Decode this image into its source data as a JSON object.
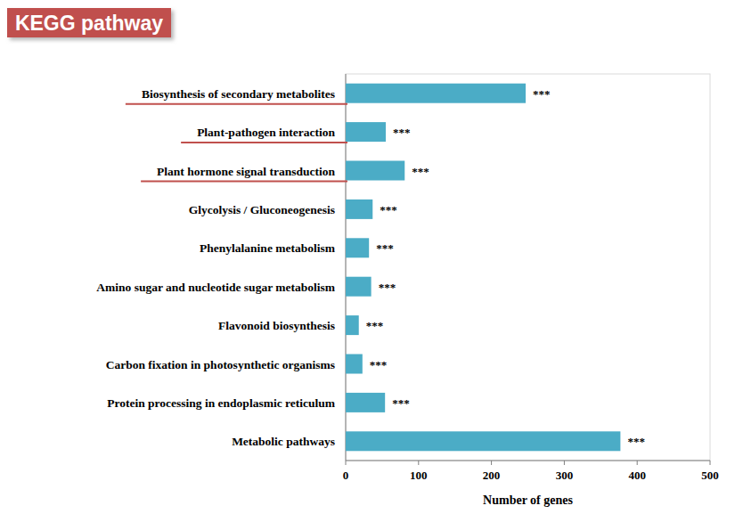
{
  "chart_data": {
    "type": "bar",
    "orientation": "horizontal",
    "title": "KEGG pathway",
    "x_label": "Number of genes",
    "categories": [
      "Biosynthesis of secondary metabolites",
      "Plant-pathogen interaction",
      "Plant hormone signal transduction",
      "Glycolysis / Gluconeogenesis",
      "Phenylalanine metabolism",
      "Amino sugar and nucleotide sugar metabolism",
      "Flavonoid biosynthesis",
      "Carbon fixation in photosynthetic organisms",
      "Protein processing in endoplasmic reticulum",
      "Metabolic pathways"
    ],
    "values": [
      247,
      55,
      81,
      37,
      32,
      35,
      18,
      23,
      54,
      377
    ],
    "annotations": [
      "***",
      "***",
      "***",
      "***",
      "***",
      "***",
      "***",
      "***",
      "***",
      "***"
    ],
    "color": "#4bacc6",
    "xlim": [
      0,
      500
    ],
    "xticks": [
      0,
      100,
      200,
      300,
      400,
      500
    ],
    "grid": false
  }
}
